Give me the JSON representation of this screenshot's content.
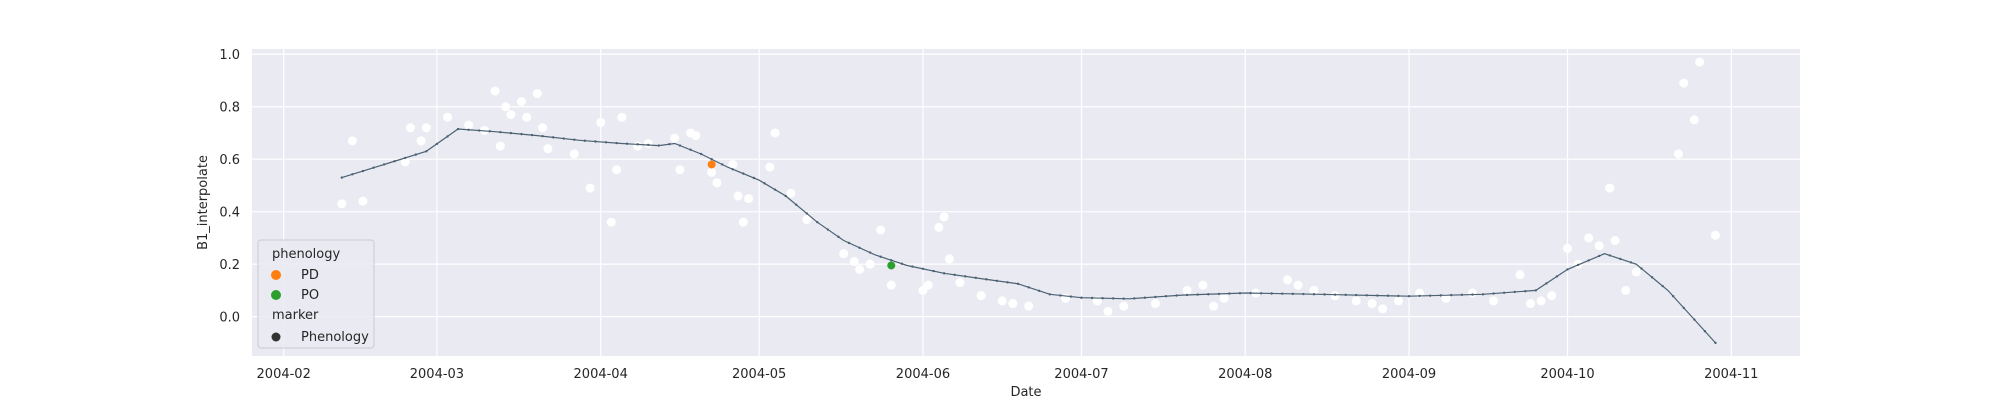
{
  "chart_data": {
    "type": "scatter",
    "xlabel": "Date",
    "ylabel": "B1_interpolate",
    "xlim": [
      "2004-01-26",
      "2004-11-14"
    ],
    "ylim": [
      -0.15,
      1.02
    ],
    "x_ticks": [
      "2004-02",
      "2004-03",
      "2004-04",
      "2004-05",
      "2004-06",
      "2004-07",
      "2004-08",
      "2004-09",
      "2004-10",
      "2004-11"
    ],
    "y_ticks": [
      0.0,
      0.2,
      0.4,
      0.6,
      0.8,
      1.0
    ],
    "y_tick_labels": [
      "0.0",
      "0.2",
      "0.4",
      "0.6",
      "0.8",
      "1.0"
    ],
    "grid": true,
    "legend": {
      "placement": "lower-left",
      "title": "phenology",
      "entries": [
        {
          "label": "PD",
          "color": "#ff7f0e"
        },
        {
          "label": "PO",
          "color": "#2ca02c"
        }
      ],
      "subtitle": "marker",
      "marker_entries": [
        {
          "label": "Phenology",
          "color": "#333333"
        }
      ]
    },
    "colors": {
      "background": "#eaeaf2",
      "grid": "#ffffff",
      "raw_points": "#ffffff",
      "interp_line": "#4b6272",
      "pd": "#ff7f0e",
      "po": "#2ca02c"
    },
    "interpolated_curve": [
      {
        "x": "2004-02-12",
        "y": 0.53
      },
      {
        "x": "2004-02-20",
        "y": 0.58
      },
      {
        "x": "2004-02-28",
        "y": 0.63
      },
      {
        "x": "2004-03-05",
        "y": 0.715
      },
      {
        "x": "2004-03-12",
        "y": 0.705
      },
      {
        "x": "2004-03-20",
        "y": 0.69
      },
      {
        "x": "2004-03-28",
        "y": 0.672
      },
      {
        "x": "2004-04-05",
        "y": 0.66
      },
      {
        "x": "2004-04-12",
        "y": 0.652
      },
      {
        "x": "2004-04-15",
        "y": 0.66
      },
      {
        "x": "2004-04-20",
        "y": 0.62
      },
      {
        "x": "2004-04-25",
        "y": 0.57
      },
      {
        "x": "2004-05-01",
        "y": 0.52
      },
      {
        "x": "2004-05-06",
        "y": 0.46
      },
      {
        "x": "2004-05-12",
        "y": 0.36
      },
      {
        "x": "2004-05-17",
        "y": 0.29
      },
      {
        "x": "2004-05-23",
        "y": 0.235
      },
      {
        "x": "2004-05-29",
        "y": 0.195
      },
      {
        "x": "2004-06-05",
        "y": 0.165
      },
      {
        "x": "2004-06-12",
        "y": 0.145
      },
      {
        "x": "2004-06-19",
        "y": 0.125
      },
      {
        "x": "2004-06-25",
        "y": 0.085
      },
      {
        "x": "2004-07-01",
        "y": 0.072
      },
      {
        "x": "2004-07-10",
        "y": 0.068
      },
      {
        "x": "2004-07-20",
        "y": 0.082
      },
      {
        "x": "2004-08-01",
        "y": 0.09
      },
      {
        "x": "2004-08-15",
        "y": 0.085
      },
      {
        "x": "2004-09-01",
        "y": 0.078
      },
      {
        "x": "2004-09-15",
        "y": 0.085
      },
      {
        "x": "2004-09-25",
        "y": 0.1
      },
      {
        "x": "2004-10-01",
        "y": 0.18
      },
      {
        "x": "2004-10-08",
        "y": 0.24
      },
      {
        "x": "2004-10-14",
        "y": 0.2
      },
      {
        "x": "2004-10-20",
        "y": 0.1
      },
      {
        "x": "2004-10-29",
        "y": -0.1
      }
    ],
    "raw_points": [
      {
        "x": "2004-02-12",
        "y": 0.43
      },
      {
        "x": "2004-02-14",
        "y": 0.67
      },
      {
        "x": "2004-02-16",
        "y": 0.44
      },
      {
        "x": "2004-02-24",
        "y": 0.59
      },
      {
        "x": "2004-02-25",
        "y": 0.72
      },
      {
        "x": "2004-02-27",
        "y": 0.67
      },
      {
        "x": "2004-02-28",
        "y": 0.72
      },
      {
        "x": "2004-03-03",
        "y": 0.76
      },
      {
        "x": "2004-03-07",
        "y": 0.73
      },
      {
        "x": "2004-03-10",
        "y": 0.71
      },
      {
        "x": "2004-03-12",
        "y": 0.86
      },
      {
        "x": "2004-03-13",
        "y": 0.65
      },
      {
        "x": "2004-03-14",
        "y": 0.8
      },
      {
        "x": "2004-03-15",
        "y": 0.77
      },
      {
        "x": "2004-03-17",
        "y": 0.82
      },
      {
        "x": "2004-03-18",
        "y": 0.76
      },
      {
        "x": "2004-03-20",
        "y": 0.85
      },
      {
        "x": "2004-03-21",
        "y": 0.72
      },
      {
        "x": "2004-03-22",
        "y": 0.64
      },
      {
        "x": "2004-03-27",
        "y": 0.62
      },
      {
        "x": "2004-03-30",
        "y": 0.49
      },
      {
        "x": "2004-04-01",
        "y": 0.74
      },
      {
        "x": "2004-04-03",
        "y": 0.36
      },
      {
        "x": "2004-04-04",
        "y": 0.56
      },
      {
        "x": "2004-04-05",
        "y": 0.76
      },
      {
        "x": "2004-04-08",
        "y": 0.65
      },
      {
        "x": "2004-04-10",
        "y": 0.66
      },
      {
        "x": "2004-04-15",
        "y": 0.68
      },
      {
        "x": "2004-04-16",
        "y": 0.56
      },
      {
        "x": "2004-04-18",
        "y": 0.7
      },
      {
        "x": "2004-04-19",
        "y": 0.69
      },
      {
        "x": "2004-04-22",
        "y": 0.55
      },
      {
        "x": "2004-04-23",
        "y": 0.51
      },
      {
        "x": "2004-04-26",
        "y": 0.58
      },
      {
        "x": "2004-04-27",
        "y": 0.46
      },
      {
        "x": "2004-04-28",
        "y": 0.36
      },
      {
        "x": "2004-04-29",
        "y": 0.45
      },
      {
        "x": "2004-05-03",
        "y": 0.57
      },
      {
        "x": "2004-05-04",
        "y": 0.7
      },
      {
        "x": "2004-05-07",
        "y": 0.47
      },
      {
        "x": "2004-05-10",
        "y": 0.37
      },
      {
        "x": "2004-05-17",
        "y": 0.24
      },
      {
        "x": "2004-05-19",
        "y": 0.21
      },
      {
        "x": "2004-05-20",
        "y": 0.18
      },
      {
        "x": "2004-05-22",
        "y": 0.2
      },
      {
        "x": "2004-05-24",
        "y": 0.33
      },
      {
        "x": "2004-05-26",
        "y": 0.12
      },
      {
        "x": "2004-06-01",
        "y": 0.1
      },
      {
        "x": "2004-06-02",
        "y": 0.12
      },
      {
        "x": "2004-06-04",
        "y": 0.34
      },
      {
        "x": "2004-06-05",
        "y": 0.38
      },
      {
        "x": "2004-06-06",
        "y": 0.22
      },
      {
        "x": "2004-06-08",
        "y": 0.13
      },
      {
        "x": "2004-06-12",
        "y": 0.08
      },
      {
        "x": "2004-06-16",
        "y": 0.06
      },
      {
        "x": "2004-06-18",
        "y": 0.05
      },
      {
        "x": "2004-06-21",
        "y": 0.04
      },
      {
        "x": "2004-06-28",
        "y": 0.07
      },
      {
        "x": "2004-07-04",
        "y": 0.06
      },
      {
        "x": "2004-07-06",
        "y": 0.02
      },
      {
        "x": "2004-07-09",
        "y": 0.04
      },
      {
        "x": "2004-07-15",
        "y": 0.05
      },
      {
        "x": "2004-07-21",
        "y": 0.1
      },
      {
        "x": "2004-07-24",
        "y": 0.12
      },
      {
        "x": "2004-07-26",
        "y": 0.04
      },
      {
        "x": "2004-07-28",
        "y": 0.07
      },
      {
        "x": "2004-08-03",
        "y": 0.09
      },
      {
        "x": "2004-08-09",
        "y": 0.14
      },
      {
        "x": "2004-08-11",
        "y": 0.12
      },
      {
        "x": "2004-08-14",
        "y": 0.1
      },
      {
        "x": "2004-08-18",
        "y": 0.08
      },
      {
        "x": "2004-08-22",
        "y": 0.06
      },
      {
        "x": "2004-08-25",
        "y": 0.05
      },
      {
        "x": "2004-08-27",
        "y": 0.03
      },
      {
        "x": "2004-08-30",
        "y": 0.06
      },
      {
        "x": "2004-09-03",
        "y": 0.09
      },
      {
        "x": "2004-09-08",
        "y": 0.07
      },
      {
        "x": "2004-09-13",
        "y": 0.09
      },
      {
        "x": "2004-09-17",
        "y": 0.06
      },
      {
        "x": "2004-09-22",
        "y": 0.16
      },
      {
        "x": "2004-09-24",
        "y": 0.05
      },
      {
        "x": "2004-09-26",
        "y": 0.06
      },
      {
        "x": "2004-09-28",
        "y": 0.08
      },
      {
        "x": "2004-10-01",
        "y": 0.26
      },
      {
        "x": "2004-10-03",
        "y": 0.2
      },
      {
        "x": "2004-10-05",
        "y": 0.3
      },
      {
        "x": "2004-10-07",
        "y": 0.27
      },
      {
        "x": "2004-10-09",
        "y": 0.49
      },
      {
        "x": "2004-10-10",
        "y": 0.29
      },
      {
        "x": "2004-10-12",
        "y": 0.1
      },
      {
        "x": "2004-10-14",
        "y": 0.17
      },
      {
        "x": "2004-10-22",
        "y": 0.62
      },
      {
        "x": "2004-10-23",
        "y": 0.89
      },
      {
        "x": "2004-10-25",
        "y": 0.75
      },
      {
        "x": "2004-10-26",
        "y": 0.97
      },
      {
        "x": "2004-10-29",
        "y": 0.31
      }
    ],
    "phenology_points": [
      {
        "label": "PD",
        "x": "2004-04-22",
        "y": 0.58,
        "color": "#ff7f0e"
      },
      {
        "label": "PO",
        "x": "2004-05-26",
        "y": 0.195,
        "color": "#2ca02c"
      }
    ]
  }
}
